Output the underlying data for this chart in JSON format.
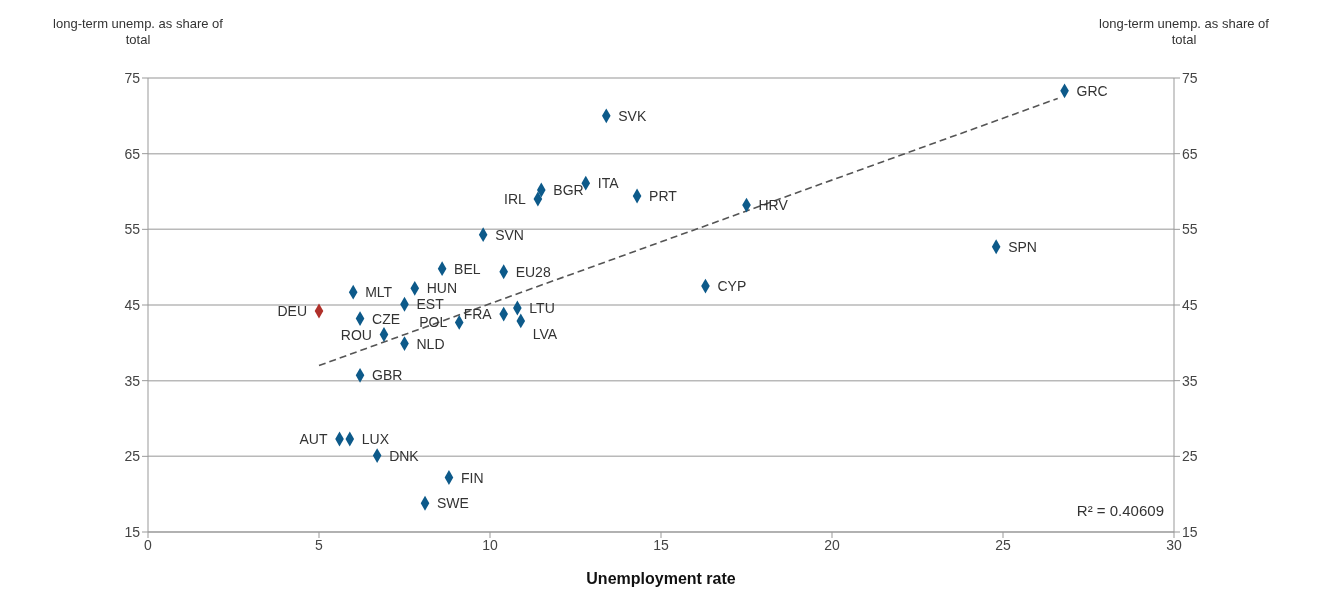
{
  "chart_data": {
    "type": "scatter",
    "xlabel": "Unemployment rate",
    "ylabel": "long-term unemp. as share of total",
    "y2label": "long-term unemp. as share of total",
    "xlim": [
      0,
      30
    ],
    "xticks": [
      0,
      5,
      10,
      15,
      20,
      25,
      30
    ],
    "ylim": [
      15,
      75
    ],
    "yticks": [
      15,
      25,
      35,
      45,
      55,
      65,
      75
    ],
    "y2lim": [
      15,
      75
    ],
    "y2ticks": [
      15,
      25,
      35,
      45,
      55,
      65,
      75
    ],
    "grid": "y",
    "marker": "diamond",
    "series": [
      {
        "x": [
          26.8,
          13.4,
          12.8,
          11.5,
          11.4,
          14.3,
          17.5,
          9.8,
          24.8,
          8.6,
          10.4,
          16.3,
          6.0,
          7.8,
          7.5,
          5.0,
          6.2,
          10.8,
          10.4,
          10.9,
          9.1,
          6.9,
          7.5,
          6.2,
          5.6,
          5.9,
          6.7,
          8.8,
          8.1
        ],
        "values": [
          73.3,
          70.0,
          61.1,
          60.2,
          59.0,
          59.4,
          58.2,
          54.3,
          52.7,
          49.8,
          49.4,
          47.5,
          46.7,
          47.2,
          45.1,
          44.2,
          43.2,
          44.6,
          43.8,
          42.9,
          42.7,
          41.1,
          39.9,
          35.7,
          27.3,
          27.3,
          25.1,
          22.2,
          18.8
        ],
        "colors": [
          "#0d5a8a",
          "#0d5a8a",
          "#0d5a8a",
          "#0d5a8a",
          "#0d5a8a",
          "#0d5a8a",
          "#0d5a8a",
          "#0d5a8a",
          "#0d5a8a",
          "#0d5a8a",
          "#0d5a8a",
          "#0d5a8a",
          "#0d5a8a",
          "#0d5a8a",
          "#0d5a8a",
          "#b0302a",
          "#0d5a8a",
          "#0d5a8a",
          "#0d5a8a",
          "#0d5a8a",
          "#0d5a8a",
          "#0d5a8a",
          "#0d5a8a",
          "#0d5a8a",
          "#0d5a8a",
          "#0d5a8a",
          "#0d5a8a",
          "#0d5a8a",
          "#0d5a8a"
        ]
      },
      {
        "type": "line",
        "x": [
          5,
          26.6
        ],
        "values": [
          37.0,
          72.3
        ],
        "color": "#555555",
        "line_style": "dashed",
        "marker": "none"
      }
    ],
    "annotations": [
      {
        "text": "GRC",
        "x": 26.8,
        "y": 73.3
      },
      {
        "text": "SVK",
        "x": 13.4,
        "y": 70.0
      },
      {
        "text": "ITA",
        "x": 12.8,
        "y": 61.1
      },
      {
        "text": "BGR",
        "x": 11.5,
        "y": 60.2
      },
      {
        "text": "IRL",
        "x": 11.4,
        "y": 59.0
      },
      {
        "text": "PRT",
        "x": 14.3,
        "y": 59.4
      },
      {
        "text": "HRV",
        "x": 17.5,
        "y": 58.2
      },
      {
        "text": "SVN",
        "x": 9.8,
        "y": 54.3
      },
      {
        "text": "SPN",
        "x": 24.8,
        "y": 52.7
      },
      {
        "text": "BEL",
        "x": 8.6,
        "y": 49.8
      },
      {
        "text": "EU28",
        "x": 10.4,
        "y": 49.4
      },
      {
        "text": "CYP",
        "x": 16.3,
        "y": 47.5
      },
      {
        "text": "MLT",
        "x": 6.0,
        "y": 46.7
      },
      {
        "text": "HUN",
        "x": 7.8,
        "y": 47.2
      },
      {
        "text": "EST",
        "x": 7.5,
        "y": 45.1
      },
      {
        "text": "DEU",
        "x": 5.0,
        "y": 44.2
      },
      {
        "text": "CZE",
        "x": 6.2,
        "y": 43.2
      },
      {
        "text": "LTU",
        "x": 10.8,
        "y": 44.6
      },
      {
        "text": "FRA",
        "x": 10.4,
        "y": 43.8
      },
      {
        "text": "LVA",
        "x": 10.9,
        "y": 42.9
      },
      {
        "text": "POL",
        "x": 9.1,
        "y": 42.7
      },
      {
        "text": "ROU",
        "x": 6.9,
        "y": 41.1
      },
      {
        "text": "NLD",
        "x": 7.5,
        "y": 39.9
      },
      {
        "text": "GBR",
        "x": 6.2,
        "y": 35.7
      },
      {
        "text": "AUT",
        "x": 5.6,
        "y": 27.3
      },
      {
        "text": "LUX",
        "x": 5.9,
        "y": 27.3
      },
      {
        "text": "DNK",
        "x": 6.7,
        "y": 25.1
      },
      {
        "text": "FIN",
        "x": 8.8,
        "y": 22.2
      },
      {
        "text": "SWE",
        "x": 8.1,
        "y": 18.8
      },
      "R² = 0.40609"
    ]
  }
}
